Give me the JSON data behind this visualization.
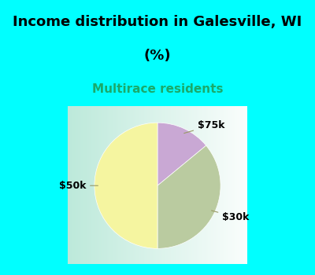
{
  "title_line1": "Income distribution in Galesville, WI",
  "title_line2": "(%)",
  "subtitle": "Multirace residents",
  "slices": [
    {
      "label": "$75k",
      "value": 14,
      "color": "#C9A8D4"
    },
    {
      "label": "$30k",
      "value": 36,
      "color": "#BACBA0"
    },
    {
      "label": "$50k",
      "value": 50,
      "color": "#F5F5A0"
    }
  ],
  "counterclock": false,
  "startangle": 90,
  "title_fontsize": 13,
  "subtitle_fontsize": 11,
  "subtitle_color": "#1AAA6A",
  "title_color": "#000000",
  "bg_color": "#00FFFF",
  "chart_bg_left": "#B8E8D8",
  "chart_bg_right": "#E8F4F0",
  "label_fontsize": 9
}
